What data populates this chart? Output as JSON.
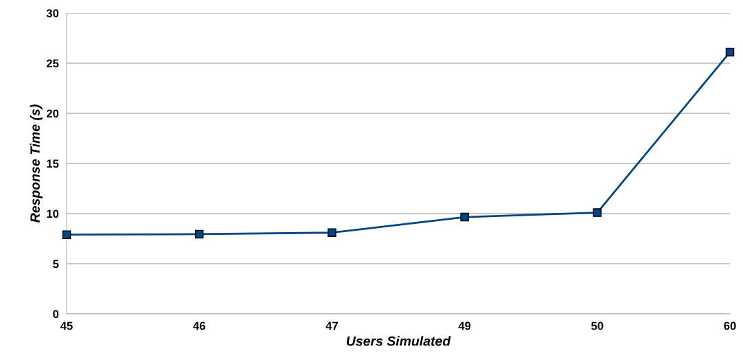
{
  "chart_data": {
    "type": "line",
    "xlabel": "Users Simulated",
    "ylabel": "Response Time (s)",
    "categories": [
      "45",
      "46",
      "47",
      "49",
      "50",
      "60"
    ],
    "series": [
      {
        "color": "#004586",
        "values": [
          7.9,
          7.95,
          8.1,
          9.65,
          10.1,
          26.1
        ]
      }
    ],
    "ylim": [
      0,
      30
    ],
    "yticks": [
      0,
      5,
      10,
      15,
      20,
      25,
      30
    ],
    "grid": "y",
    "marker": "square",
    "line_style": "solid"
  }
}
